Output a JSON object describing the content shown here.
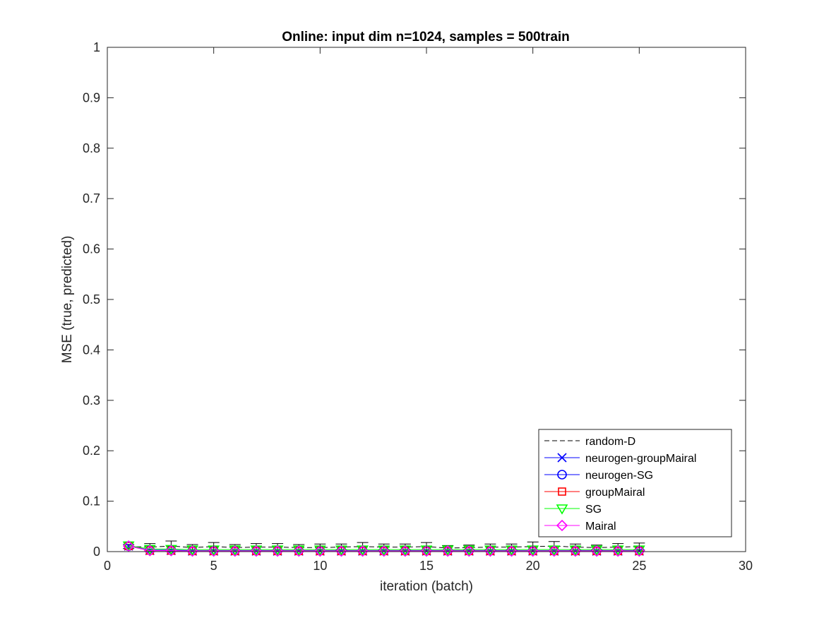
{
  "chart_data": {
    "type": "line",
    "title": "Online:  input dim n=1024, samples = 500train",
    "xlabel": "iteration (batch)",
    "ylabel": "MSE (true, predicted)",
    "xlim": [
      0,
      30
    ],
    "ylim": [
      0,
      1
    ],
    "xticks": [
      0,
      5,
      10,
      15,
      20,
      25,
      30
    ],
    "yticks": [
      0,
      0.1,
      0.2,
      0.3,
      0.4,
      0.5,
      0.6,
      0.7,
      0.8,
      0.9,
      1
    ],
    "grid": false,
    "legend_position": "bottom-right",
    "x": [
      1,
      2,
      3,
      4,
      5,
      6,
      7,
      8,
      9,
      10,
      11,
      12,
      13,
      14,
      15,
      16,
      17,
      18,
      19,
      20,
      21,
      22,
      23,
      24,
      25
    ],
    "series": [
      {
        "name": "random-D",
        "color": "#000000",
        "line_style": "dashed",
        "marker": "none",
        "values": [
          0.01,
          0.009,
          0.011,
          0.008,
          0.01,
          0.008,
          0.009,
          0.009,
          0.008,
          0.008,
          0.009,
          0.01,
          0.009,
          0.009,
          0.01,
          0.007,
          0.008,
          0.009,
          0.009,
          0.01,
          0.011,
          0.009,
          0.008,
          0.009,
          0.01
        ],
        "error": [
          0.004,
          0.007,
          0.01,
          0.006,
          0.008,
          0.006,
          0.007,
          0.007,
          0.006,
          0.007,
          0.006,
          0.008,
          0.006,
          0.006,
          0.008,
          0.005,
          0.005,
          0.006,
          0.006,
          0.009,
          0.009,
          0.006,
          0.005,
          0.007,
          0.007
        ]
      },
      {
        "name": "neurogen-groupMairal",
        "color": "#0000ff",
        "line_style": "solid",
        "marker": "x",
        "values": [
          0.011,
          0.002,
          0.002,
          0.001,
          0.001,
          0.001,
          0.001,
          0.001,
          0.001,
          0.001,
          0.001,
          0.001,
          0.001,
          0.001,
          0.001,
          0.001,
          0.001,
          0.001,
          0.001,
          0.001,
          0.001,
          0.001,
          0.001,
          0.001,
          0.001
        ]
      },
      {
        "name": "neurogen-SG",
        "color": "#0000ff",
        "line_style": "solid",
        "marker": "circle",
        "values": [
          0.011,
          0.003,
          0.003,
          0.002,
          0.002,
          0.002,
          0.002,
          0.002,
          0.002,
          0.002,
          0.002,
          0.002,
          0.002,
          0.002,
          0.002,
          0.002,
          0.002,
          0.002,
          0.002,
          0.002,
          0.002,
          0.002,
          0.002,
          0.002,
          0.002
        ]
      },
      {
        "name": "groupMairal",
        "color": "#ff0000",
        "line_style": "solid",
        "marker": "square",
        "values": [
          0.011,
          0.002,
          0.002,
          0.001,
          0.001,
          0.001,
          0.001,
          0.001,
          0.001,
          0.001,
          0.001,
          0.001,
          0.001,
          0.001,
          0.001,
          0.001,
          0.001,
          0.001,
          0.001,
          0.001,
          0.001,
          0.001,
          0.001,
          0.001,
          0.001
        ]
      },
      {
        "name": "SG",
        "color": "#00ff00",
        "line_style": "solid",
        "marker": "triangle-down",
        "values": [
          0.012,
          0.005,
          0.005,
          0.004,
          0.004,
          0.004,
          0.004,
          0.004,
          0.004,
          0.004,
          0.004,
          0.004,
          0.004,
          0.004,
          0.004,
          0.004,
          0.004,
          0.004,
          0.004,
          0.004,
          0.004,
          0.004,
          0.004,
          0.004,
          0.004
        ]
      },
      {
        "name": "Mairal",
        "color": "#ff00ff",
        "line_style": "solid",
        "marker": "diamond",
        "values": [
          0.011,
          0.002,
          0.002,
          0.001,
          0.001,
          0.001,
          0.001,
          0.001,
          0.001,
          0.001,
          0.001,
          0.001,
          0.001,
          0.001,
          0.001,
          0.001,
          0.001,
          0.001,
          0.001,
          0.001,
          0.001,
          0.001,
          0.001,
          0.001,
          0.001
        ]
      }
    ]
  }
}
